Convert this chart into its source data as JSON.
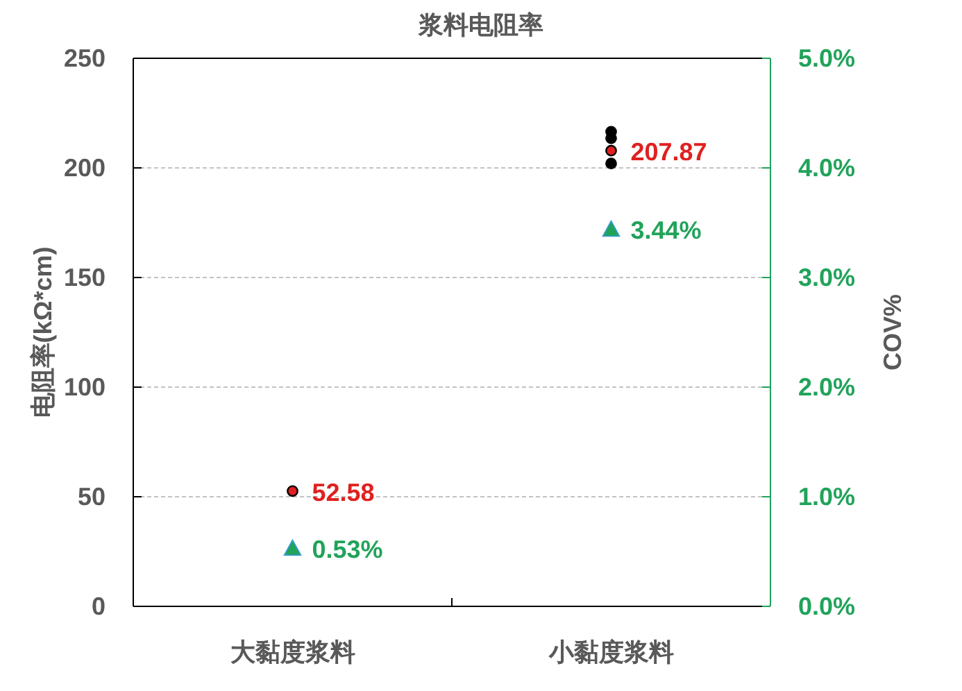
{
  "chart_data": {
    "type": "scatter",
    "title": "浆料电阻率",
    "ylabel": "电阻率(kΩ*cm)",
    "y2label": "COV%",
    "categories": [
      "大黏度浆料",
      "小黏度浆料"
    ],
    "ylim": [
      0,
      250
    ],
    "yticks": [
      0,
      50,
      100,
      150,
      200,
      250
    ],
    "y2lim": [
      0,
      5
    ],
    "y2ticks": [
      {
        "value": 0,
        "label": "0.0%"
      },
      {
        "value": 1,
        "label": "1.0%"
      },
      {
        "value": 2,
        "label": "2.0%"
      },
      {
        "value": 3,
        "label": "3.0%"
      },
      {
        "value": 4,
        "label": "4.0%"
      },
      {
        "value": 5,
        "label": "5.0%"
      }
    ],
    "grid": "y",
    "series": [
      {
        "color": "#000000",
        "marker": "circle",
        "x": [
          "小黏度浆料",
          "小黏度浆料",
          "小黏度浆料"
        ],
        "values": [
          216.5,
          213.5,
          202
        ]
      },
      {
        "color": "#e02020",
        "marker": "circle",
        "values": [
          52.58,
          207.87
        ],
        "value_labels": [
          "52.58",
          "207.87"
        ]
      },
      {
        "color": "#21a35a",
        "marker": "triangle",
        "axis": "y2",
        "values": [
          0.53,
          3.44
        ],
        "value_labels": [
          "0.53%",
          "3.44%"
        ]
      }
    ]
  }
}
